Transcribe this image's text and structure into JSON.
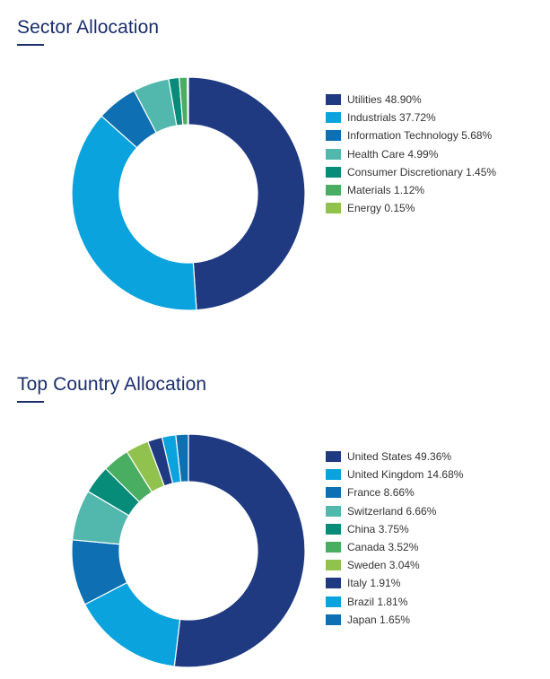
{
  "chart_data": [
    {
      "type": "pie",
      "title": "Sector Allocation",
      "categories": [
        "Utilities",
        "Industrials",
        "Information Technology",
        "Health Care",
        "Consumer Discretionary",
        "Materials",
        "Energy"
      ],
      "values": [
        48.9,
        37.72,
        5.68,
        4.99,
        1.45,
        1.12,
        0.15
      ],
      "labels": [
        "Utilities 48.90%",
        "Industrials 37.72%",
        "Information Technology 5.68%",
        "Health Care 4.99%",
        "Consumer Discretionary 1.45%",
        "Materials 1.12%",
        "Energy 0.15%"
      ],
      "colors": [
        "#203a82",
        "#0aa3dd",
        "#0e6fb2",
        "#52b7ad",
        "#068c79",
        "#4aae62",
        "#92c24e"
      ],
      "donut": true,
      "legend_position": "right"
    },
    {
      "type": "pie",
      "title": "Top Country Allocation",
      "categories": [
        "United States",
        "United Kingdom",
        "France",
        "Switzerland",
        "China",
        "Canada",
        "Sweden",
        "Italy",
        "Brazil",
        "Japan"
      ],
      "values": [
        49.36,
        14.68,
        8.66,
        6.66,
        3.75,
        3.52,
        3.04,
        1.91,
        1.81,
        1.65
      ],
      "labels": [
        "United States 49.36%",
        "United Kingdom 14.68%",
        "France 8.66%",
        "Switzerland 6.66%",
        "China 3.75%",
        "Canada 3.52%",
        "Sweden 3.04%",
        "Italy 1.91%",
        "Brazil 1.81%",
        "Japan 1.65%"
      ],
      "colors": [
        "#203a82",
        "#0aa3dd",
        "#0e6fb2",
        "#52b7ad",
        "#068c79",
        "#4aae62",
        "#92c24e",
        "#203a82",
        "#0aa3dd",
        "#0e6fb2"
      ],
      "donut": true,
      "legend_position": "right"
    }
  ]
}
